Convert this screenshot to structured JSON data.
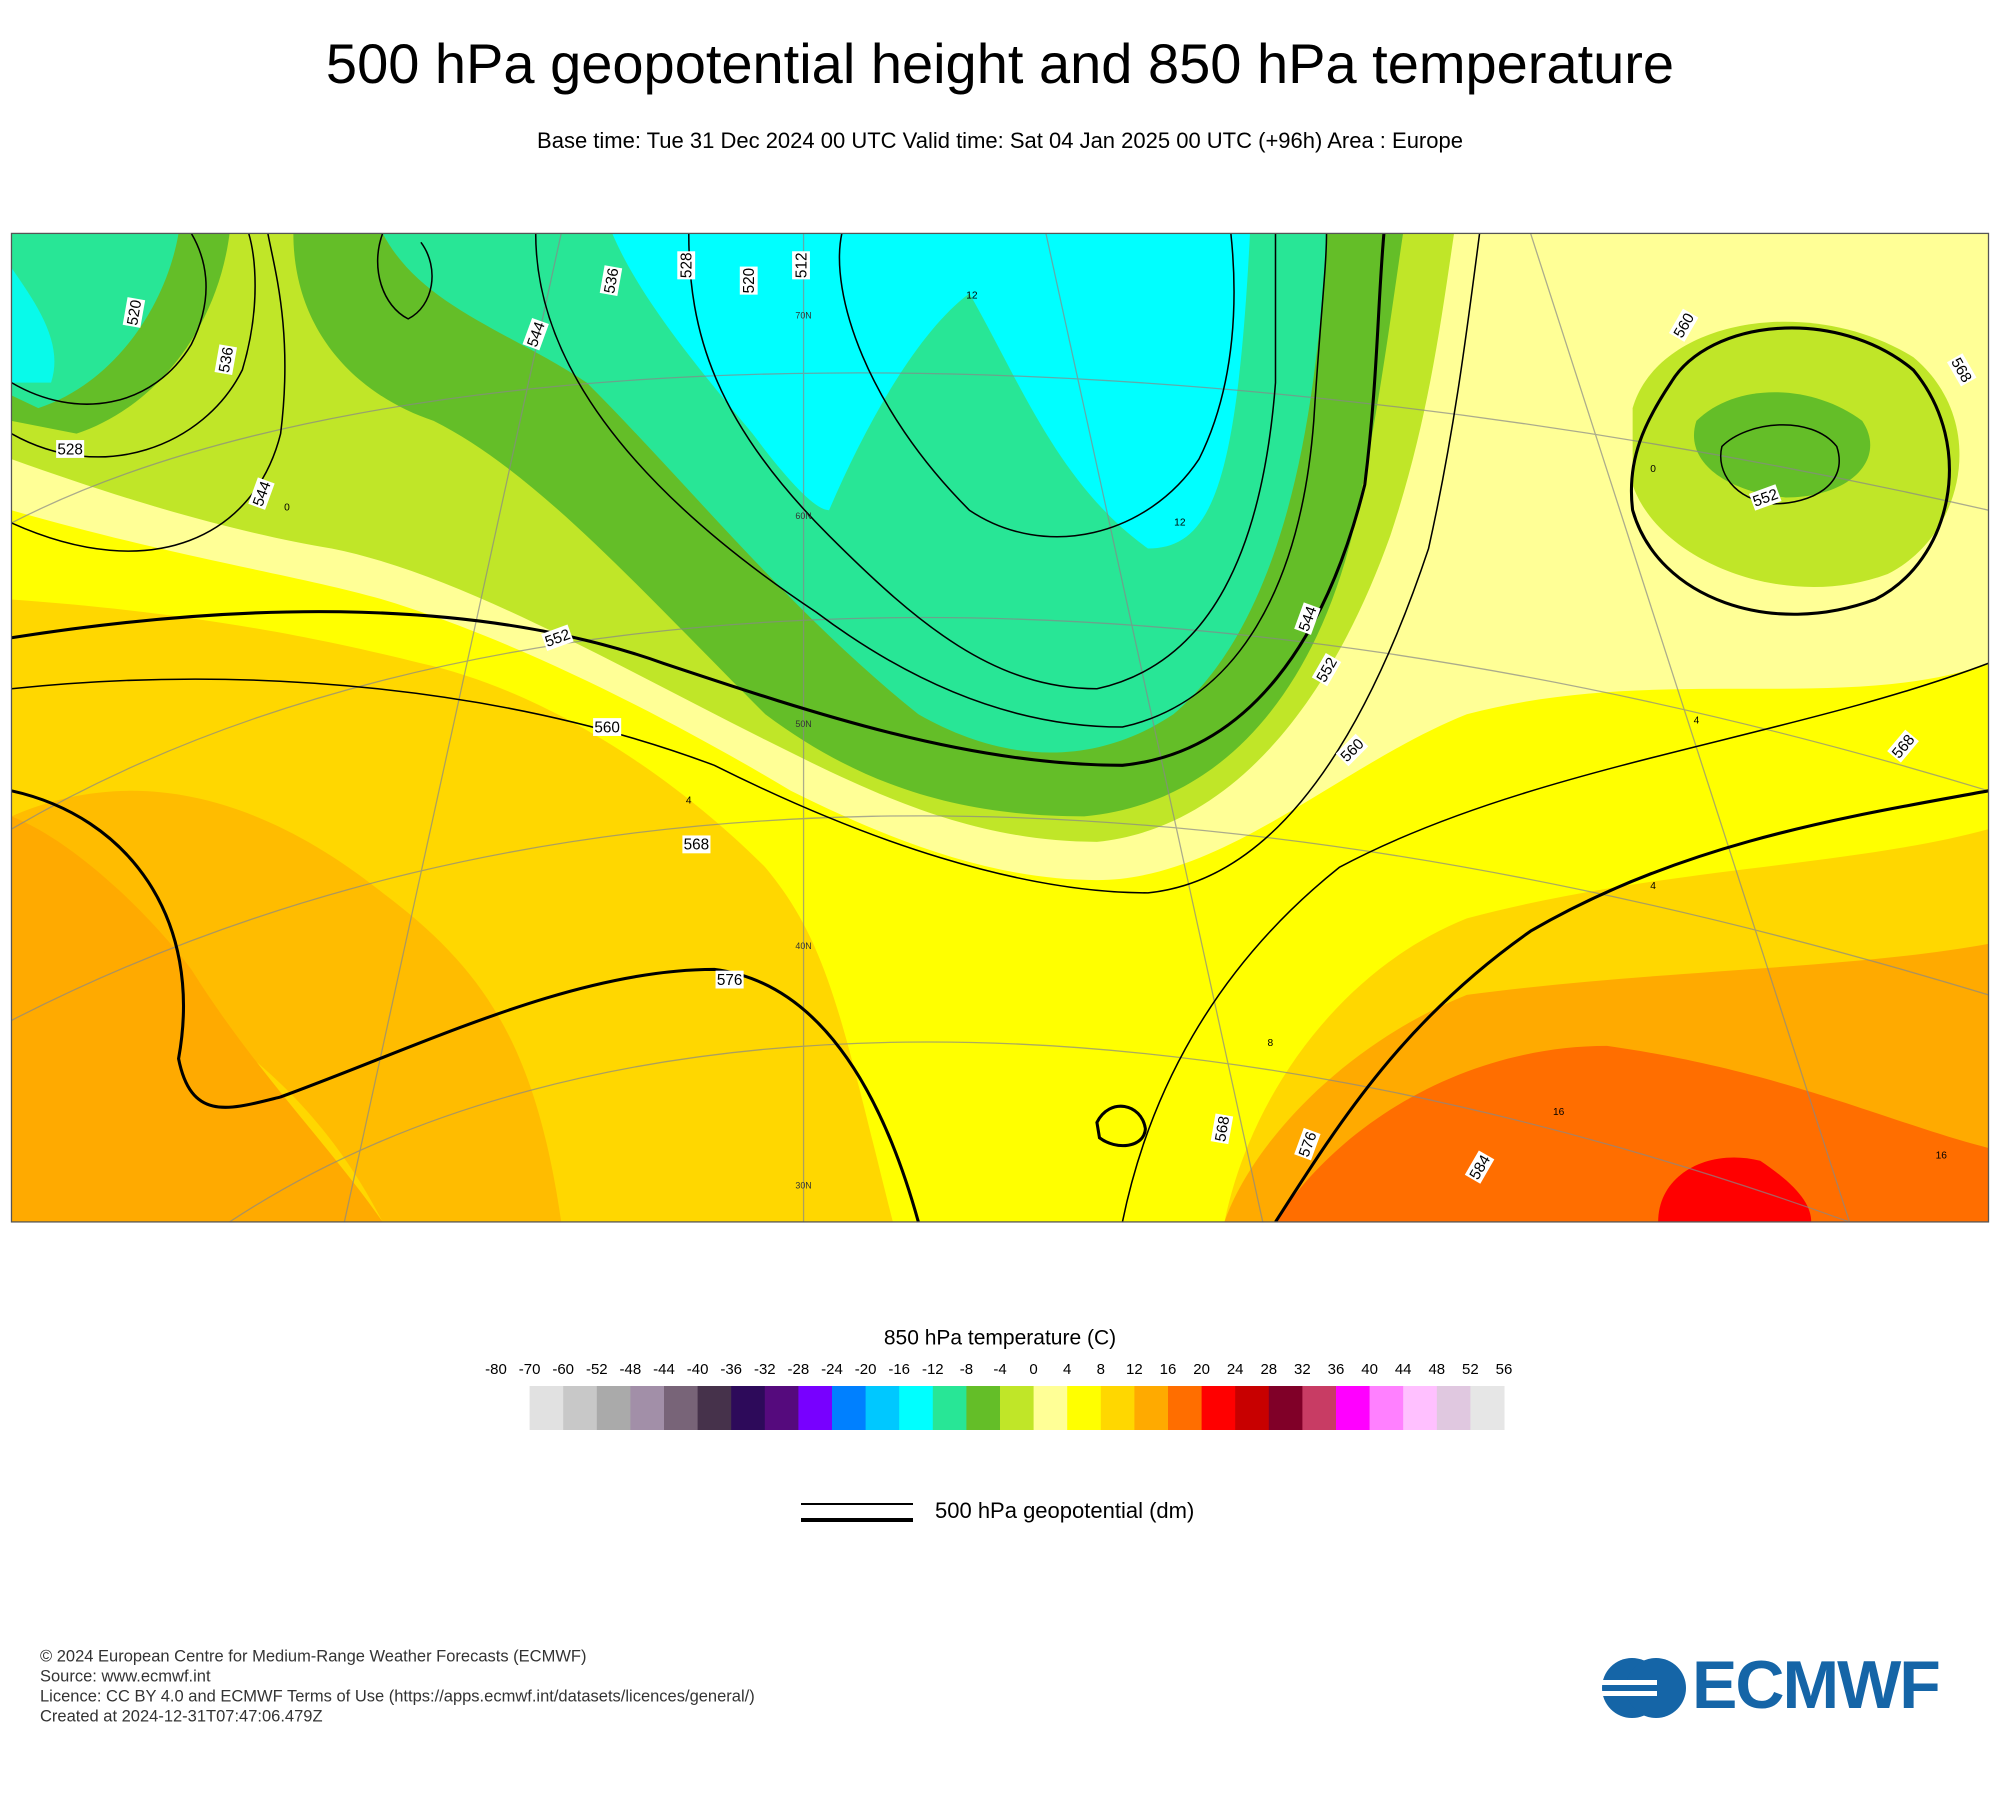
{
  "header": {
    "title": "500 hPa geopotential height and 850 hPa temperature",
    "subtitle": "Base time: Tue 31 Dec 2024 00 UTC Valid time: Sat 04 Jan 2025 00 UTC (+96h) Area : Europe"
  },
  "map": {
    "contour_labels": [
      520,
      528,
      536,
      544,
      552,
      560,
      568,
      576,
      584,
      512,
      520,
      528,
      536,
      544,
      552,
      560,
      568,
      568,
      576,
      560,
      552,
      544,
      568
    ],
    "temperature_labels": [
      0,
      0,
      4,
      4,
      4,
      8,
      12,
      12,
      16,
      16
    ],
    "graticule_labels": [
      "70N",
      "60N",
      "50N",
      "40N",
      "30N"
    ]
  },
  "colorbar": {
    "title": "850 hPa temperature (C)",
    "bounds": [
      -80,
      -70,
      -60,
      -52,
      -48,
      -44,
      -40,
      -36,
      -32,
      -28,
      -24,
      -20,
      -16,
      -12,
      -8,
      -4,
      0,
      4,
      8,
      12,
      16,
      20,
      24,
      28,
      32,
      36,
      40,
      44,
      48,
      52,
      56
    ],
    "colors": [
      "#ffffff",
      "#e1e1e1",
      "#c8c8c8",
      "#aaaaaa",
      "#a28fa8",
      "#786478",
      "#46324b",
      "#2d0a5a",
      "#550a7d",
      "#7800ff",
      "#0080ff",
      "#00c8ff",
      "#00ffff",
      "#28e696",
      "#64be28",
      "#c0e628",
      "#ffff96",
      "#ffff00",
      "#ffd700",
      "#ffaa00",
      "#ff6e00",
      "#ff0000",
      "#c80000",
      "#800028",
      "#c83c64",
      "#ff00ff",
      "#ff80ff",
      "#ffc0ff",
      "#e0c8e0",
      "#e6e6e6"
    ]
  },
  "legend": {
    "label": "500 hPa geopotential (dm)"
  },
  "footer": {
    "lines": [
      "© 2024 European Centre for Medium-Range Weather Forecasts (ECMWF)",
      "Source: www.ecmwf.int",
      "Licence: CC BY 4.0 and ECMWF Terms of Use (https://apps.ecmwf.int/datasets/licences/general/)",
      "Created at 2024-12-31T07:47:06.479Z"
    ],
    "logo": "ECMWF"
  }
}
